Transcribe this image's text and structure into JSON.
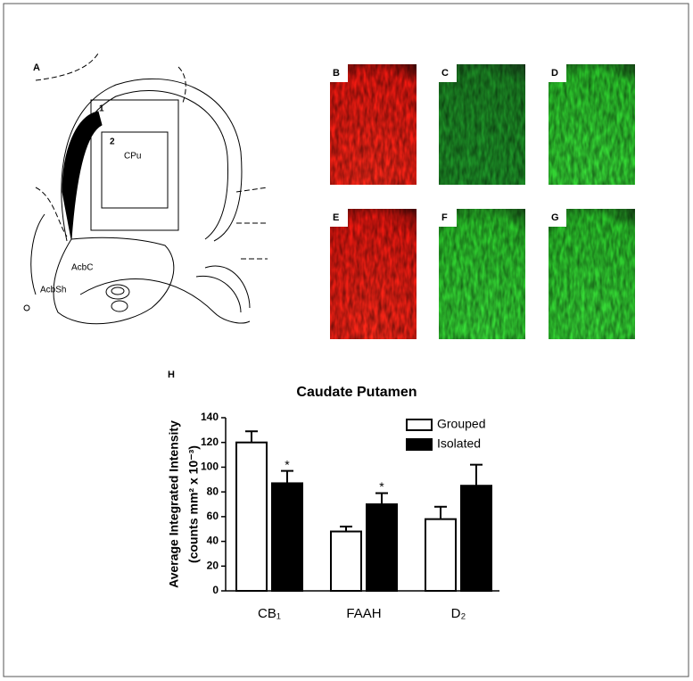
{
  "figure": {
    "panel_labels": [
      "A",
      "B",
      "C",
      "D",
      "E",
      "F",
      "G",
      "H"
    ],
    "diagram_labels": [
      "1",
      "2",
      "CPu",
      "AcbC",
      "AcbSh"
    ]
  },
  "chart_data": {
    "type": "bar",
    "title": "Caudate Putamen",
    "y_label": [
      "Average Integrated Intensity",
      "(counts mm² x 10⁻³)"
    ],
    "categories": [
      "CB₁",
      "FAAH",
      "D₂"
    ],
    "series": [
      {
        "name": "Grouped",
        "color": "#ffffff",
        "values": [
          120,
          48,
          58
        ],
        "errors": [
          9,
          4,
          10
        ]
      },
      {
        "name": "Isolated",
        "color": "#000000",
        "values": [
          87,
          70,
          85
        ],
        "errors": [
          10,
          9,
          17
        ],
        "significance": [
          "*",
          "*",
          null
        ]
      }
    ],
    "ylim": [
      0,
      140
    ],
    "yticks": [
      0,
      20,
      40,
      60,
      80,
      100,
      120,
      140
    ],
    "legend": "upper right"
  }
}
